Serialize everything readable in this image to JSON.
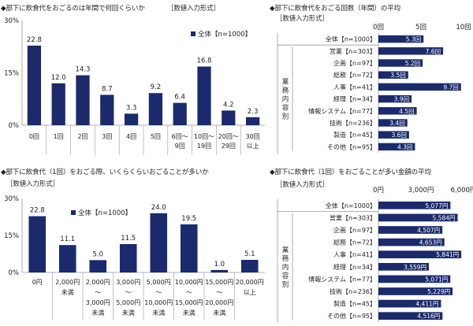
{
  "chart_data": [
    {
      "type": "bar",
      "title": "◆部下に飲食代をおごるのは年間で何回くらいか",
      "subtitle": "［数値入力形式］",
      "categories": [
        [
          "0回"
        ],
        [
          "1回"
        ],
        [
          "2回"
        ],
        [
          "3回"
        ],
        [
          "4回"
        ],
        [
          "5回"
        ],
        [
          "6回～",
          "9回"
        ],
        [
          "10回～",
          "19回"
        ],
        [
          "20回～",
          "29回"
        ],
        [
          "30回",
          "以上"
        ]
      ],
      "values": [
        22.8,
        12.0,
        14.3,
        8.7,
        3.3,
        9.2,
        6.4,
        16.8,
        4.2,
        2.3
      ],
      "series": [
        {
          "name": "全体【n=1000】"
        }
      ],
      "yticks": [
        "0%",
        "15%",
        "30%"
      ],
      "ylim": [
        0,
        30
      ],
      "unit": "%",
      "color": "#1a2a6c"
    },
    {
      "type": "bar",
      "orientation": "horizontal",
      "title": "◆部下に飲食代をおごる回数（年間）の平均",
      "subtitle": "［数値入力形式］",
      "xticks": [
        "0回",
        "5回",
        "10回"
      ],
      "xlim": [
        0,
        10
      ],
      "group_label": "業務内容別",
      "categories": [
        "全体【n=1000】",
        "営業【n=303】",
        "企画【n=97】",
        "総務【n=72】",
        "人事【n=41】",
        "経理【n=34】",
        "情報システム【n=77】",
        "技術【n=236】",
        "製造【n=45】",
        "その他【n=95】"
      ],
      "values": [
        5.3,
        7.6,
        5.2,
        3.5,
        9.7,
        3.9,
        4.5,
        3.4,
        3.6,
        4.3
      ],
      "value_labels": [
        "5.3回",
        "7.6回",
        "5.2回",
        "3.5回",
        "9.7回",
        "3.9回",
        "4.5回",
        "3.4回",
        "3.6回",
        "4.3回"
      ],
      "color": "#1a2a6c"
    },
    {
      "type": "bar",
      "title": "◆部下に飲食代（1回）をおごる際、いくらくらいおごることが多いか",
      "subtitle": "［数値入力形式］",
      "categories": [
        [
          "0円"
        ],
        [
          "2,000円",
          "未満"
        ],
        [
          "2,000円",
          "～",
          "3,000円",
          "未満"
        ],
        [
          "3,000円",
          "～",
          "5,000円",
          "未満"
        ],
        [
          "5,000円",
          "～",
          "10,000円",
          "未満"
        ],
        [
          "10,000円",
          "～",
          "15,000円",
          "未満"
        ],
        [
          "15,000円",
          "～",
          "20,000円",
          "未満"
        ],
        [
          "20,000円",
          "以上"
        ]
      ],
      "values": [
        22.8,
        11.1,
        5.0,
        11.5,
        24.0,
        19.5,
        1.0,
        5.1
      ],
      "series": [
        {
          "name": "全体【n=1000】"
        }
      ],
      "yticks": [
        "0%",
        "15%",
        "30%"
      ],
      "ylim": [
        0,
        30
      ],
      "unit": "%",
      "color": "#1a2a6c"
    },
    {
      "type": "bar",
      "orientation": "horizontal",
      "title": "◆部下に飲食代（1回）をおごることが多い金額の平均",
      "subtitle": "［数値入力形式］",
      "xticks": [
        "0円",
        "3,000円",
        "6,000円"
      ],
      "xlim": [
        0,
        6000
      ],
      "group_label": "業務内容別",
      "categories": [
        "全体【n=1000】",
        "営業【n=303】",
        "企画【n=97】",
        "総務【n=72】",
        "人事【n=41】",
        "経理【n=34】",
        "情報システム【n=77】",
        "技術【n=236】",
        "製造【n=45】",
        "その他【n=95】"
      ],
      "values": [
        5077,
        5584,
        4507,
        4653,
        5841,
        3559,
        5071,
        5229,
        4411,
        4516
      ],
      "value_labels": [
        "5,077円",
        "5,584円",
        "4,507円",
        "4,653円",
        "5,841円",
        "3,559円",
        "5,071円",
        "5,229円",
        "4,411円",
        "4,516円"
      ],
      "color": "#1a2a6c"
    }
  ]
}
